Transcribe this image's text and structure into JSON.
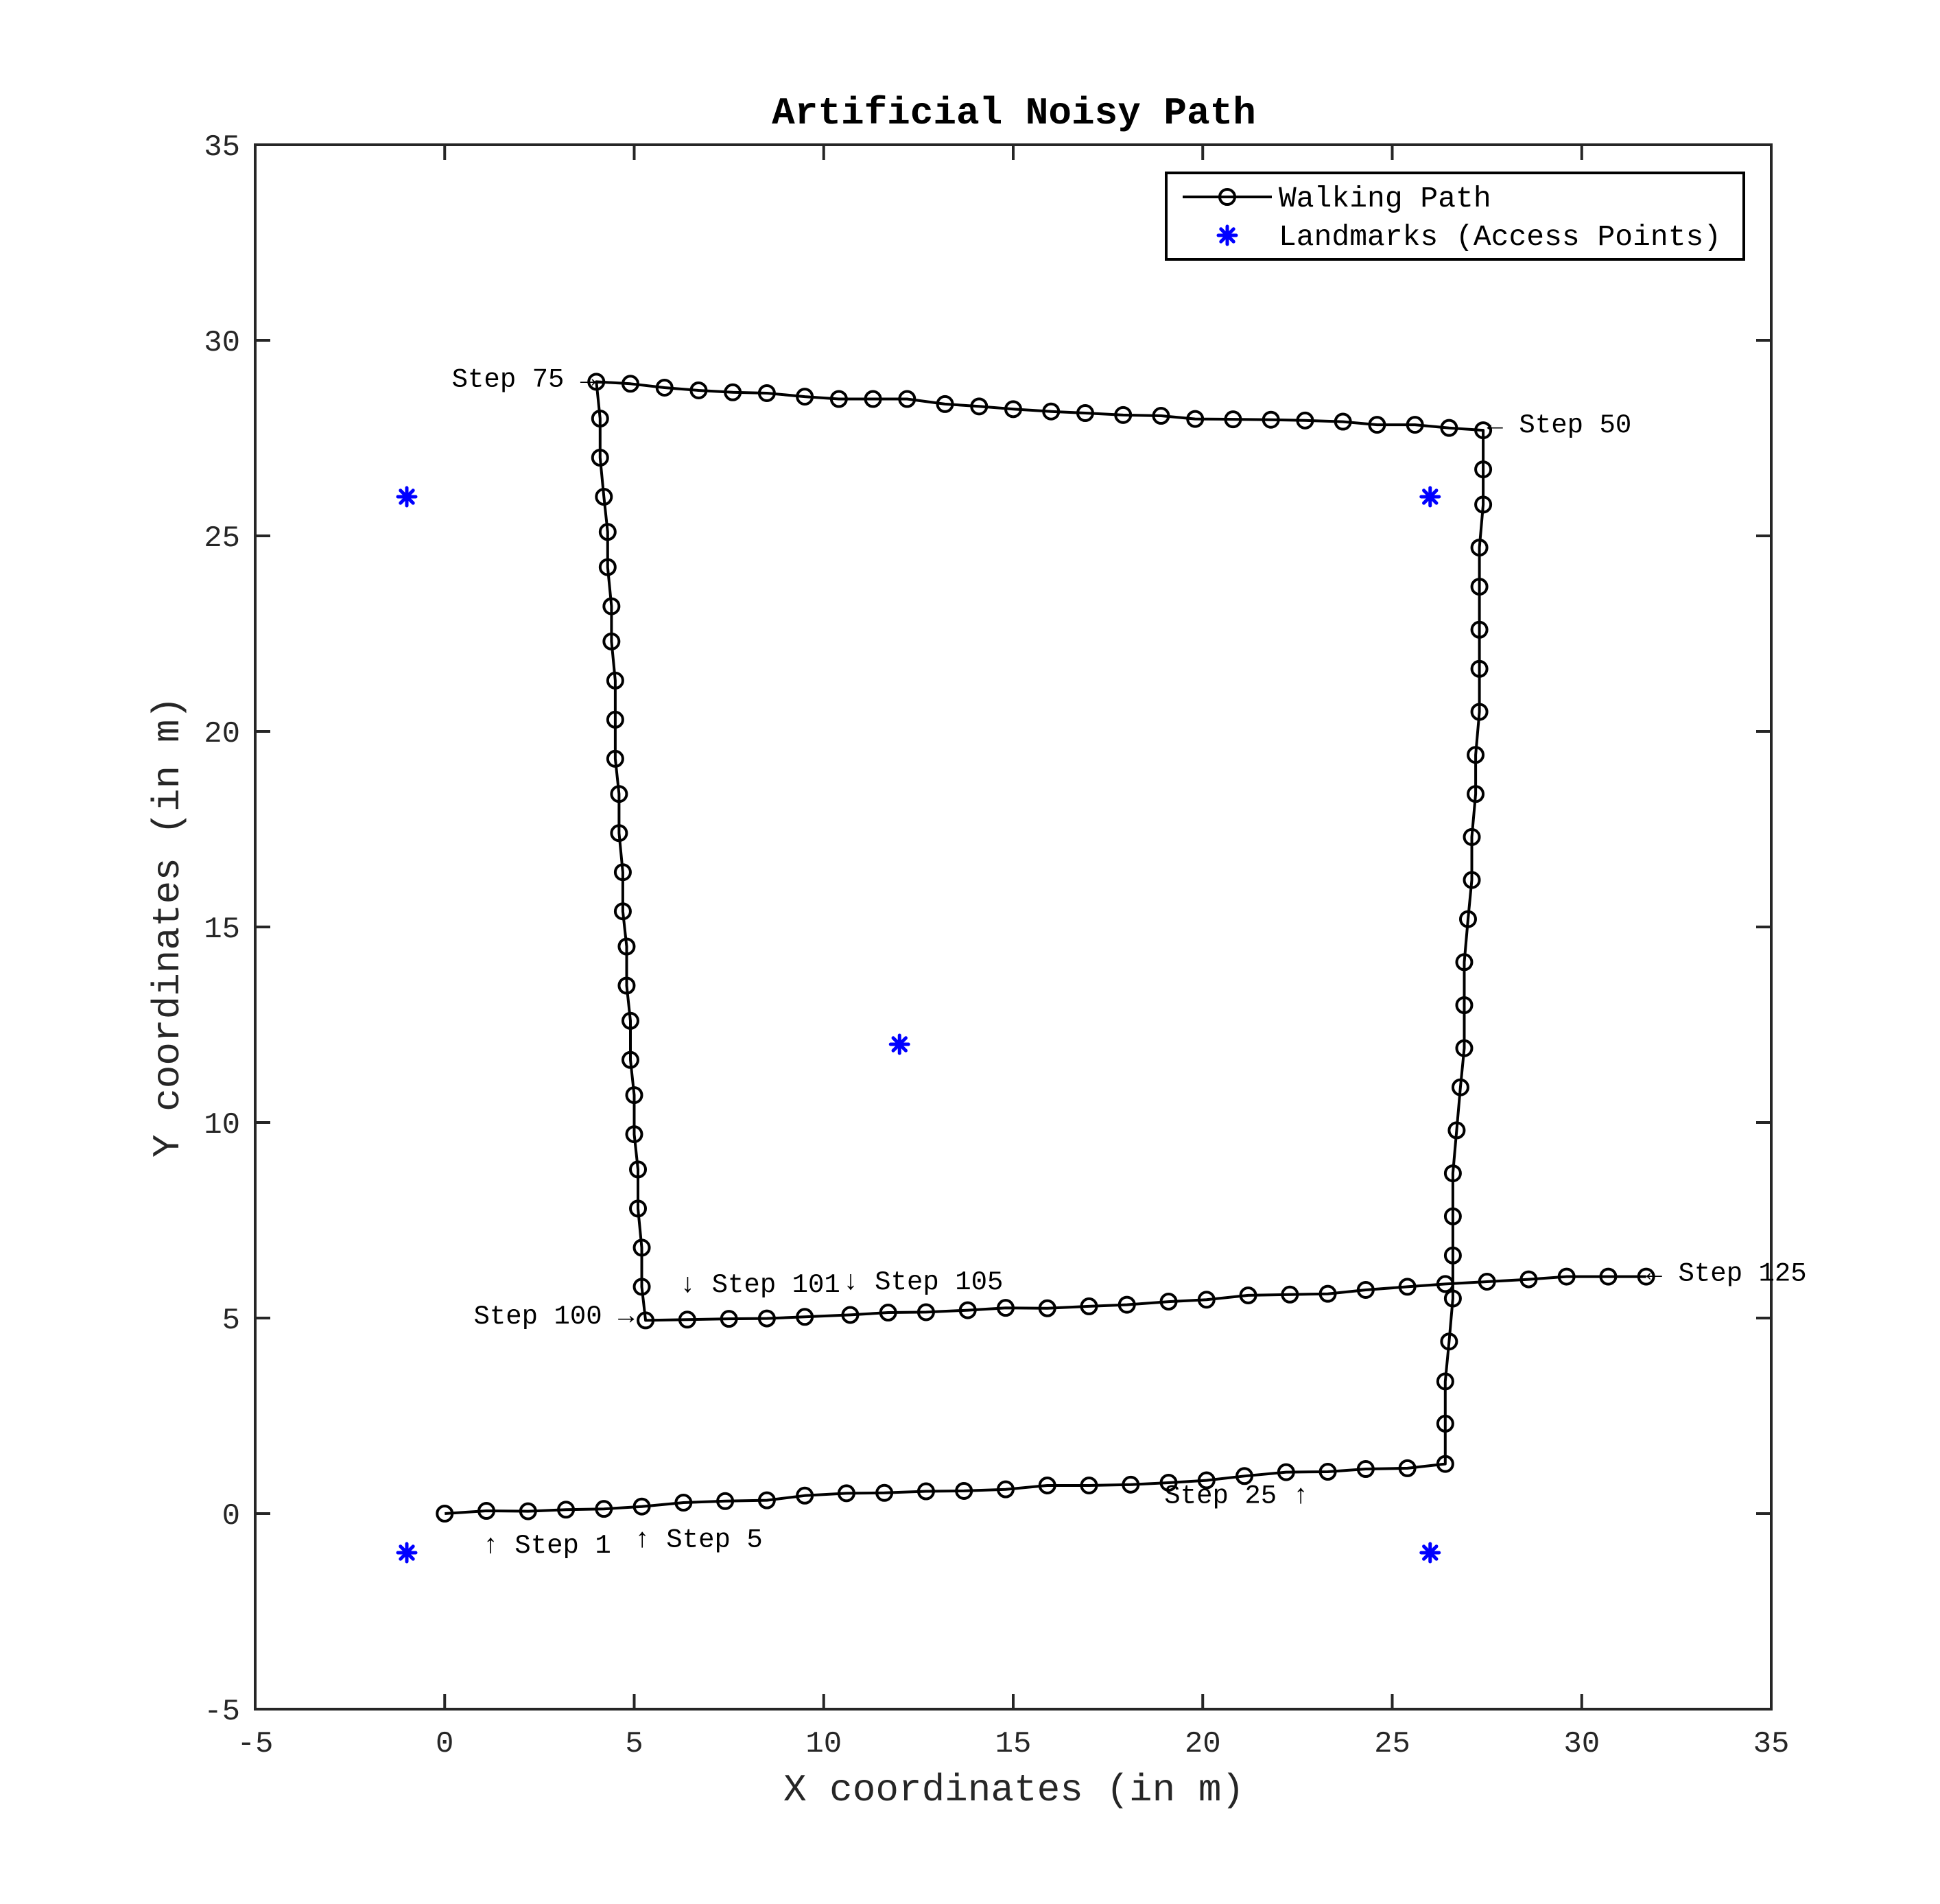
{
  "chart_data": {
    "type": "line",
    "title": "Artificial Noisy Path",
    "xlabel": "X coordinates (in m)",
    "ylabel": "Y coordinates (in m)",
    "xlim": [
      -5,
      35
    ],
    "ylim": [
      -5,
      35
    ],
    "xticks": [
      -5,
      0,
      5,
      10,
      15,
      20,
      25,
      30,
      35
    ],
    "yticks": [
      -5,
      0,
      5,
      10,
      15,
      20,
      25,
      30,
      35
    ],
    "xtick_labels": [
      "-5",
      "0",
      "5",
      "10",
      "15",
      "20",
      "25",
      "30",
      "35"
    ],
    "ytick_labels": [
      "-5",
      "0",
      "5",
      "10",
      "15",
      "20",
      "25",
      "30",
      "35"
    ],
    "grid": false,
    "legend_position": "top-right",
    "legend": [
      {
        "label": "Walking Path",
        "marker": "circle-line",
        "color": "#000000"
      },
      {
        "label": "Landmarks (Access Points)",
        "marker": "asterisk",
        "color": "#0000ff"
      }
    ],
    "series": [
      {
        "name": "Walking Path",
        "color": "#000000",
        "points": [
          [
            0.0,
            0.0
          ],
          [
            1.1,
            0.07
          ],
          [
            2.2,
            0.06
          ],
          [
            3.2,
            0.1
          ],
          [
            4.2,
            0.12
          ],
          [
            5.2,
            0.18
          ],
          [
            6.3,
            0.28
          ],
          [
            7.4,
            0.32
          ],
          [
            8.5,
            0.34
          ],
          [
            9.5,
            0.46
          ],
          [
            10.6,
            0.52
          ],
          [
            11.6,
            0.53
          ],
          [
            12.7,
            0.57
          ],
          [
            13.7,
            0.58
          ],
          [
            14.8,
            0.62
          ],
          [
            15.9,
            0.72
          ],
          [
            17.0,
            0.72
          ],
          [
            18.1,
            0.74
          ],
          [
            19.1,
            0.79
          ],
          [
            20.1,
            0.85
          ],
          [
            21.1,
            0.96
          ],
          [
            22.2,
            1.06
          ],
          [
            23.3,
            1.07
          ],
          [
            24.3,
            1.14
          ],
          [
            25.4,
            1.16
          ],
          [
            26.4,
            1.27
          ],
          [
            26.4,
            2.3
          ],
          [
            26.4,
            3.38
          ],
          [
            26.5,
            4.4
          ],
          [
            26.6,
            5.5
          ],
          [
            26.6,
            6.6
          ],
          [
            26.6,
            7.6
          ],
          [
            26.6,
            8.7
          ],
          [
            26.7,
            9.8
          ],
          [
            26.8,
            10.9
          ],
          [
            26.9,
            11.9
          ],
          [
            26.9,
            13.0
          ],
          [
            26.9,
            14.1
          ],
          [
            27.0,
            15.2
          ],
          [
            27.1,
            16.2
          ],
          [
            27.1,
            17.3
          ],
          [
            27.2,
            18.4
          ],
          [
            27.2,
            19.4
          ],
          [
            27.3,
            20.5
          ],
          [
            27.3,
            21.6
          ],
          [
            27.3,
            22.6
          ],
          [
            27.3,
            23.7
          ],
          [
            27.3,
            24.7
          ],
          [
            27.4,
            25.8
          ],
          [
            27.4,
            26.7
          ],
          [
            27.4,
            27.7
          ],
          [
            26.5,
            27.76
          ],
          [
            25.6,
            27.84
          ],
          [
            24.6,
            27.84
          ],
          [
            23.7,
            27.92
          ],
          [
            22.7,
            27.95
          ],
          [
            21.8,
            27.97
          ],
          [
            20.8,
            27.98
          ],
          [
            19.8,
            27.99
          ],
          [
            18.9,
            28.07
          ],
          [
            17.9,
            28.09
          ],
          [
            16.9,
            28.14
          ],
          [
            16.0,
            28.18
          ],
          [
            15.0,
            28.24
          ],
          [
            14.1,
            28.31
          ],
          [
            13.2,
            28.37
          ],
          [
            12.2,
            28.5
          ],
          [
            11.3,
            28.5
          ],
          [
            10.4,
            28.5
          ],
          [
            9.5,
            28.56
          ],
          [
            8.5,
            28.65
          ],
          [
            7.6,
            28.67
          ],
          [
            6.7,
            28.72
          ],
          [
            5.8,
            28.79
          ],
          [
            4.9,
            28.89
          ],
          [
            4.0,
            28.94
          ],
          [
            4.1,
            28.0
          ],
          [
            4.1,
            27.0
          ],
          [
            4.2,
            26.0
          ],
          [
            4.3,
            25.1
          ],
          [
            4.3,
            24.2
          ],
          [
            4.4,
            23.2
          ],
          [
            4.4,
            22.3
          ],
          [
            4.5,
            21.3
          ],
          [
            4.5,
            20.3
          ],
          [
            4.5,
            19.3
          ],
          [
            4.6,
            18.4
          ],
          [
            4.6,
            17.4
          ],
          [
            4.7,
            16.4
          ],
          [
            4.7,
            15.4
          ],
          [
            4.8,
            14.5
          ],
          [
            4.8,
            13.5
          ],
          [
            4.9,
            12.6
          ],
          [
            4.9,
            11.6
          ],
          [
            5.0,
            10.7
          ],
          [
            5.0,
            9.7
          ],
          [
            5.1,
            8.8
          ],
          [
            5.1,
            7.8
          ],
          [
            5.2,
            6.8
          ],
          [
            5.2,
            5.8
          ],
          [
            5.3,
            4.94
          ],
          [
            6.4,
            4.96
          ],
          [
            7.5,
            4.98
          ],
          [
            8.5,
            4.99
          ],
          [
            9.5,
            5.03
          ],
          [
            10.7,
            5.08
          ],
          [
            11.7,
            5.14
          ],
          [
            12.7,
            5.15
          ],
          [
            13.8,
            5.2
          ],
          [
            14.8,
            5.26
          ],
          [
            15.9,
            5.25
          ],
          [
            17.0,
            5.3
          ],
          [
            18.0,
            5.34
          ],
          [
            19.1,
            5.42
          ],
          [
            20.1,
            5.47
          ],
          [
            21.2,
            5.58
          ],
          [
            22.3,
            5.6
          ],
          [
            23.3,
            5.62
          ],
          [
            24.3,
            5.72
          ],
          [
            25.4,
            5.8
          ],
          [
            26.4,
            5.87
          ],
          [
            27.5,
            5.93
          ],
          [
            28.6,
            5.99
          ],
          [
            29.6,
            6.06
          ],
          [
            30.7,
            6.06
          ],
          [
            31.7,
            6.06
          ]
        ]
      },
      {
        "name": "Landmarks (Access Points)",
        "color": "#0000ff",
        "points": [
          [
            -1,
            -1
          ],
          [
            26,
            -1
          ],
          [
            -1,
            26
          ],
          [
            26,
            26
          ],
          [
            12,
            12
          ]
        ]
      }
    ],
    "annotations": [
      {
        "text": "↑ Step 1",
        "x": 1.0,
        "y": -1.0
      },
      {
        "text": "↑ Step 5",
        "x": 5.0,
        "y": -0.85
      },
      {
        "text": "Step 25 ↑",
        "x": 22.8,
        "y": 0.27
      },
      {
        "text": "← Step 50",
        "x": 27.5,
        "y": 27.65
      },
      {
        "text": "Step 75 →",
        "x": 4.0,
        "y": 28.82
      },
      {
        "text": "Step 100 →",
        "x": 5.0,
        "y": 4.86
      },
      {
        "text": "↓ Step 101",
        "x": 6.2,
        "y": 5.67
      },
      {
        "text": "↓ Step 105",
        "x": 10.5,
        "y": 5.74
      },
      {
        "text": "← Step 125",
        "x": 31.7,
        "y": 5.96
      }
    ]
  }
}
